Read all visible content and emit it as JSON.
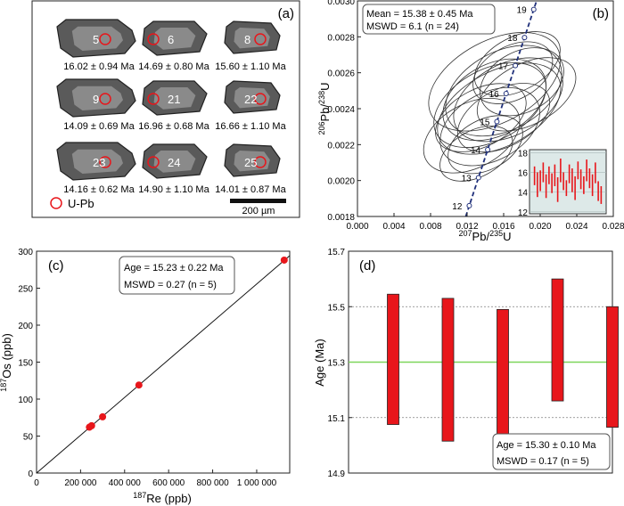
{
  "panel_a": {
    "label": "(a)",
    "legend_label": "U-Pb",
    "scale_label": "200 µm",
    "grains": [
      {
        "num": "5",
        "age": "16.02  ± 0.94 Ma"
      },
      {
        "num": "6",
        "age": "14.69  ± 0.80 Ma"
      },
      {
        "num": "8",
        "age": "15.60  ± 1.10 Ma"
      },
      {
        "num": "9",
        "age": "14.09  ± 0.69 Ma"
      },
      {
        "num": "21",
        "age": "16.96  ± 0.68 Ma"
      },
      {
        "num": "22",
        "age": "16.66  ± 1.10 Ma"
      },
      {
        "num": "23",
        "age": "14.16  ± 0.62 Ma"
      },
      {
        "num": "24",
        "age": "14.90  ± 1.10 Ma"
      },
      {
        "num": "25",
        "age": "14.01  ± 0.87 Ma"
      }
    ]
  },
  "chart_data": [
    {
      "panel": "(b)",
      "type": "scatter",
      "title": "",
      "info_lines": [
        "Mean = 15.38  ± 0.45 Ma",
        "MSWD = 6.1 (n = 24)"
      ],
      "xlabel": "207Pb/235U",
      "ylabel": "206Pb/238U",
      "xlim": [
        0.0,
        0.028
      ],
      "ylim": [
        0.0018,
        0.003
      ],
      "xticks": [
        "0.000",
        "0.004",
        "0.008",
        "0.012",
        "0.016",
        "0.020",
        "0.024",
        "0.028"
      ],
      "yticks": [
        "0.0018",
        "0.0020",
        "0.0022",
        "0.0024",
        "0.0026",
        "0.0028",
        "0.0030"
      ],
      "concordia_labels": [
        "12",
        "13",
        "14",
        "15",
        "16",
        "17",
        "18",
        "19"
      ],
      "ellipses": [
        {
          "x": 0.015,
          "y": 0.00245
        },
        {
          "x": 0.0135,
          "y": 0.00235
        },
        {
          "x": 0.016,
          "y": 0.0025
        },
        {
          "x": 0.017,
          "y": 0.0026
        },
        {
          "x": 0.0145,
          "y": 0.0023
        },
        {
          "x": 0.0155,
          "y": 0.0024
        },
        {
          "x": 0.018,
          "y": 0.00255
        },
        {
          "x": 0.0125,
          "y": 0.00225
        },
        {
          "x": 0.0165,
          "y": 0.00245
        },
        {
          "x": 0.014,
          "y": 0.0022
        },
        {
          "x": 0.0175,
          "y": 0.00265
        },
        {
          "x": 0.015,
          "y": 0.00255
        },
        {
          "x": 0.016,
          "y": 0.00235
        },
        {
          "x": 0.013,
          "y": 0.00215
        },
        {
          "x": 0.0185,
          "y": 0.00248
        },
        {
          "x": 0.0145,
          "y": 0.00242
        }
      ],
      "inset": {
        "yticks": [
          "12",
          "14",
          "16",
          "18"
        ],
        "ylim": [
          11.8,
          18.3
        ],
        "bars": [
          [
            14.7,
            16.6
          ],
          [
            13.5,
            16.0
          ],
          [
            14.1,
            16.2
          ],
          [
            15.0,
            17.0
          ],
          [
            13.4,
            15.8
          ],
          [
            14.8,
            16.6
          ],
          [
            13.9,
            15.9
          ],
          [
            14.6,
            16.8
          ],
          [
            13.0,
            15.5
          ],
          [
            15.0,
            17.4
          ],
          [
            14.2,
            16.0
          ],
          [
            13.6,
            15.2
          ],
          [
            14.9,
            16.8
          ],
          [
            14.0,
            16.4
          ],
          [
            13.2,
            15.6
          ],
          [
            15.3,
            17.1
          ],
          [
            14.3,
            16.3
          ],
          [
            13.8,
            15.6
          ],
          [
            15.1,
            17.3
          ],
          [
            14.4,
            16.4
          ],
          [
            13.6,
            15.8
          ],
          [
            14.9,
            17.0
          ],
          [
            13.1,
            15.1
          ],
          [
            12.8,
            14.6
          ]
        ]
      }
    },
    {
      "panel": "(c)",
      "type": "scatter",
      "title": "",
      "info_lines": [
        "Age = 15.23  ± 0.22 Ma",
        "MSWD = 0.27 (n = 5)"
      ],
      "xlabel": "187Re (ppb)",
      "ylabel": "187Os (ppb)",
      "xlim": [
        0,
        1150000
      ],
      "ylim": [
        0,
        300
      ],
      "xticks": [
        "0",
        "200 000",
        "400 000",
        "600 000",
        "800 000",
        "1 000 000"
      ],
      "yticks": [
        "0",
        "50",
        "100",
        "150",
        "200",
        "250",
        "300"
      ],
      "points": [
        [
          240000,
          62
        ],
        [
          250000,
          64
        ],
        [
          300000,
          76
        ],
        [
          465000,
          119
        ],
        [
          1125000,
          288
        ]
      ],
      "line": [
        [
          0,
          0
        ],
        [
          1150000,
          294
        ]
      ]
    },
    {
      "panel": "(d)",
      "type": "bar",
      "title": "",
      "info_lines": [
        "Age = 15.30  ± 0.10 Ma",
        "MSWD = 0.17 (n = 5)"
      ],
      "xlabel": "",
      "ylabel": "Age (Ma)",
      "ylim": [
        14.9,
        15.7
      ],
      "yticks": [
        "14.9",
        "15.1",
        "15.3",
        "15.5",
        "15.7"
      ],
      "mean": 15.3,
      "bars": [
        [
          15.075,
          15.545
        ],
        [
          15.015,
          15.53
        ],
        [
          15.035,
          15.49
        ],
        [
          15.16,
          15.6
        ],
        [
          15.065,
          15.5
        ]
      ]
    }
  ],
  "colors": {
    "red": "#e8161b",
    "grid": "#7f7f7f",
    "green": "#7ed65a",
    "concordia": "#1f2f7a",
    "inset_bg": "#dde9e8"
  }
}
